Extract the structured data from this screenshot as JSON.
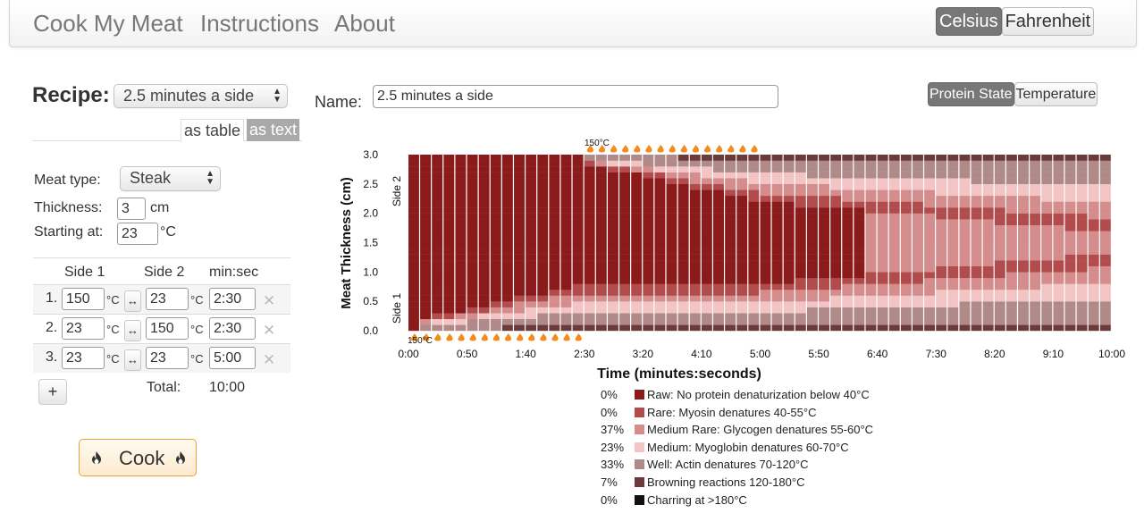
{
  "nav": {
    "brand": "Cook My Meat",
    "links": [
      "Instructions",
      "About"
    ],
    "units": [
      "Celsius",
      "Fahrenheit"
    ],
    "active_unit": "Celsius"
  },
  "recipe": {
    "label": "Recipe:",
    "selected": "2.5 minutes a side",
    "tabs": [
      "as table",
      "as text"
    ],
    "active_tab": "as text"
  },
  "form": {
    "meat_type_label": "Meat type:",
    "meat_type": "Steak",
    "thickness_label": "Thickness:",
    "thickness": "3",
    "thickness_unit": "cm",
    "starting_label": "Starting at:",
    "starting_temp": "23",
    "temp_unit": "°C"
  },
  "steps": {
    "headers": [
      "Side 1",
      "Side 2",
      "min:sec"
    ],
    "deg": "°C",
    "swap": "↔",
    "remove": "✕",
    "rows": [
      {
        "index": "1.",
        "side1": "150",
        "side2": "23",
        "time": "2:30"
      },
      {
        "index": "2.",
        "side1": "23",
        "side2": "150",
        "time": "2:30"
      },
      {
        "index": "3.",
        "side1": "23",
        "side2": "23",
        "time": "5:00"
      }
    ],
    "add": "+",
    "total_label": "Total:",
    "total_value": "10:00"
  },
  "cook_button": "Cook",
  "name": {
    "label": "Name:",
    "value": "2.5 minutes a side"
  },
  "view_toggle": {
    "options": [
      "Protein State",
      "Temperature"
    ],
    "active": "Protein State"
  },
  "colors": {
    "raw": "#8b1a1a",
    "rare": "#b24c4c",
    "medium_rare": "#d48c8c",
    "medium": "#f2c4c4",
    "well": "#b08a88",
    "browning": "#6b3b3b",
    "charring": "#111111",
    "flame": "#f28c1c"
  },
  "chart_data": {
    "type": "heatmap",
    "xlabel": "Time (minutes:seconds)",
    "ylabel": "Meat Thickness (cm)",
    "side_labels": {
      "top": "Side 2",
      "bottom": "Side 1"
    },
    "x_ticks": [
      "0:00",
      "0:50",
      "1:40",
      "2:30",
      "3:20",
      "4:10",
      "5:00",
      "5:50",
      "6:40",
      "7:30",
      "8:20",
      "9:10",
      "10:00"
    ],
    "y_ticks": [
      "0.0",
      "0.5",
      "1.0",
      "1.5",
      "2.0",
      "2.5",
      "3.0"
    ],
    "xlim": [
      0,
      600
    ],
    "ylim": [
      0,
      3.0
    ],
    "heat_markers": [
      {
        "side": "bottom",
        "label": "150°C",
        "from_s": 0,
        "to_s": 150
      },
      {
        "side": "top",
        "label": "150°C",
        "from_s": 150,
        "to_s": 300
      }
    ],
    "legend": [
      {
        "pct": "0%",
        "label": "Raw: No protein denaturization below 40°C",
        "color": "#8b1a1a"
      },
      {
        "pct": "0%",
        "label": "Rare: Myosin denatures 40-55°C",
        "color": "#b24c4c"
      },
      {
        "pct": "37%",
        "label": "Medium Rare: Glycogen denatures 55-60°C",
        "color": "#d48c8c"
      },
      {
        "pct": "23%",
        "label": "Medium: Myoglobin denatures 60-70°C",
        "color": "#f2c4c4"
      },
      {
        "pct": "33%",
        "label": "Well: Actin denatures 70-120°C",
        "color": "#b08a88"
      },
      {
        "pct": "7%",
        "label": "Browning reactions 120-180°C",
        "color": "#6b3b3b"
      },
      {
        "pct": "0%",
        "label": "Charring at >180°C",
        "color": "#111111"
      }
    ]
  }
}
